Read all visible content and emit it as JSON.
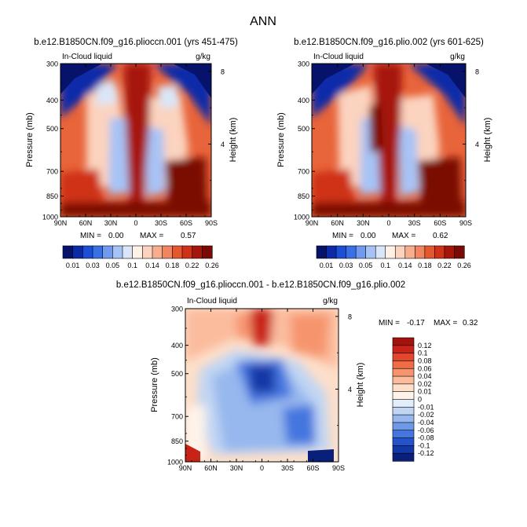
{
  "figure": {
    "title": "ANN"
  },
  "chart_data": [
    {
      "type": "heatmap",
      "title": "b.e12.B1850CN.f09_g16.plioccn.001 (yrs 451-475)",
      "field_label": "In-Cloud liquid",
      "units": "g/kg",
      "ylabel": "Pressure (mb)",
      "y2label": "Height (km)",
      "x_ticks": [
        "90N",
        "60N",
        "30N",
        "0",
        "30S",
        "60S",
        "90S"
      ],
      "y_ticks": [
        "300",
        "400",
        "500",
        "700",
        "850",
        "1000"
      ],
      "y_tick_values": [
        300,
        400,
        500,
        700,
        850,
        1000
      ],
      "y2_ticks": [
        "8",
        "4"
      ],
      "y2_tick_values": [
        8,
        4
      ],
      "min_label": "MIN =",
      "min_value": "0.00",
      "max_label": "MAX =",
      "max_value": "0.57",
      "levels": [
        "0.01",
        "0.03",
        "0.05",
        "0.1",
        "0.14",
        "0.18",
        "0.22",
        "0.26"
      ],
      "colors": [
        "#07136b",
        "#0a2aa8",
        "#1d4fd6",
        "#3a70e6",
        "#6f9af0",
        "#a7c3f5",
        "#d9e6f8",
        "#fff1e6",
        "#fbd3bf",
        "#f7ae8f",
        "#f08560",
        "#e4572f",
        "#cf3217",
        "#a6150a",
        "#7a0a05"
      ]
    },
    {
      "type": "heatmap",
      "title": "b.e12.B1850CN.f09_g16.plio.002 (yrs 601-625)",
      "field_label": "In-Cloud liquid",
      "units": "g/kg",
      "ylabel": "Pressure (mb)",
      "y2label": "Height (km)",
      "x_ticks": [
        "90N",
        "60N",
        "30N",
        "0",
        "30S",
        "60S",
        "90S"
      ],
      "y_ticks": [
        "300",
        "400",
        "500",
        "700",
        "850",
        "1000"
      ],
      "y_tick_values": [
        300,
        400,
        500,
        700,
        850,
        1000
      ],
      "y2_ticks": [
        "8",
        "4"
      ],
      "y2_tick_values": [
        8,
        4
      ],
      "min_label": "MIN =",
      "min_value": "0.00",
      "max_label": "MAX =",
      "max_value": "0.62",
      "levels": [
        "0.01",
        "0.03",
        "0.05",
        "0.1",
        "0.14",
        "0.18",
        "0.22",
        "0.26"
      ],
      "colors": [
        "#07136b",
        "#0a2aa8",
        "#1d4fd6",
        "#3a70e6",
        "#6f9af0",
        "#a7c3f5",
        "#d9e6f8",
        "#fff1e6",
        "#fbd3bf",
        "#f7ae8f",
        "#f08560",
        "#e4572f",
        "#cf3217",
        "#a6150a",
        "#7a0a05"
      ]
    },
    {
      "type": "heatmap",
      "title": "b.e12.B1850CN.f09_g16.plioccn.001 - b.e12.B1850CN.f09_g16.plio.002",
      "field_label": "In-Cloud liquid",
      "units": "g/kg",
      "ylabel": "Pressure (mb)",
      "y2label": "Height (km)",
      "x_ticks": [
        "90N",
        "60N",
        "30N",
        "0",
        "30S",
        "60S",
        "90S"
      ],
      "y_ticks": [
        "300",
        "400",
        "500",
        "700",
        "850",
        "1000"
      ],
      "y_tick_values": [
        300,
        400,
        500,
        700,
        850,
        1000
      ],
      "y2_ticks": [
        "8",
        "4"
      ],
      "y2_tick_values": [
        8,
        4
      ],
      "min_label": "MIN =",
      "min_value": "-0.17",
      "max_label": "MAX =",
      "max_value": "0.32",
      "levels": [
        "0.12",
        "0.1",
        "0.08",
        "0.06",
        "0.04",
        "0.02",
        "0.01",
        "0",
        "-0.01",
        "-0.02",
        "-0.04",
        "-0.06",
        "-0.08",
        "-0.1",
        "-0.12"
      ],
      "colors": [
        "#a3120b",
        "#c92317",
        "#e2472b",
        "#ef6c44",
        "#f6946d",
        "#fbbc9e",
        "#fddfca",
        "#fff3e9",
        "#e3ecf9",
        "#c1d5f3",
        "#97b8ee",
        "#6e98e8",
        "#4576df",
        "#2553cc",
        "#1237a6",
        "#08207a"
      ]
    }
  ]
}
